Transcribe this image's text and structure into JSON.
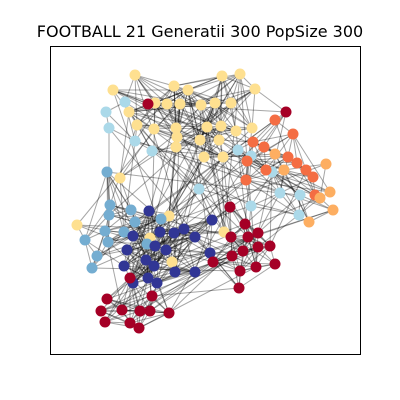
{
  "title": "FOOTBALL 21 Generatii 300 PopSize 300",
  "chart_data": {
    "type": "network",
    "title": "FOOTBALL 21 Generatii 300 PopSize 300",
    "axes": "hidden",
    "community_colors": {
      "light_yellow": "#fee090",
      "light_blue": "#abd9e9",
      "steel_blue": "#74add1",
      "dark_blue": "#313695",
      "dark_red": "#a50026",
      "orange_red": "#f46d43",
      "light_orange": "#fdae61"
    },
    "edge_color": "#000000",
    "edge_opacity": 0.35
  }
}
